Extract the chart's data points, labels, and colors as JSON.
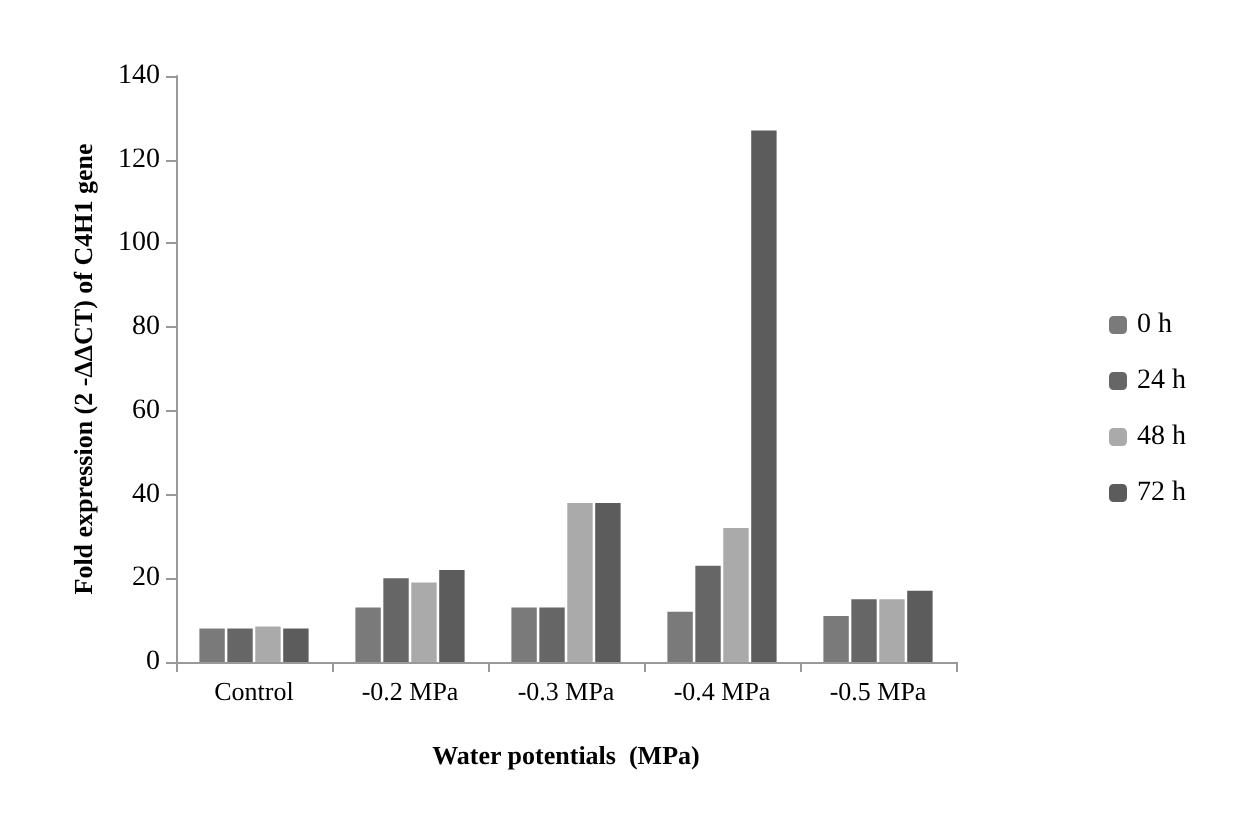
{
  "chart_data": {
    "type": "bar",
    "xlabel": "Water potentials  (MPa)",
    "ylabel": "Fold expression (2 -ΔΔCT) of C4H1 gene",
    "categories": [
      "Control",
      "-0.2 MPa",
      "-0.3 MPa",
      "-0.4 MPa",
      "-0.5 MPa"
    ],
    "series": [
      {
        "name": "0 h",
        "color": "#7a7a7a",
        "values": [
          8,
          13,
          13,
          12,
          11
        ]
      },
      {
        "name": "24 h",
        "color": "#666666",
        "values": [
          8,
          20,
          13,
          23,
          15
        ]
      },
      {
        "name": "48 h",
        "color": "#aaaaaa",
        "values": [
          8.5,
          19,
          38,
          32,
          15
        ]
      },
      {
        "name": "72 h",
        "color": "#5c5c5c",
        "values": [
          8,
          22,
          38,
          127,
          17
        ]
      }
    ],
    "ylim": [
      0,
      140
    ],
    "yticks": [
      0,
      20,
      40,
      60,
      80,
      100,
      120,
      140
    ],
    "grid": false,
    "legend": "right"
  }
}
